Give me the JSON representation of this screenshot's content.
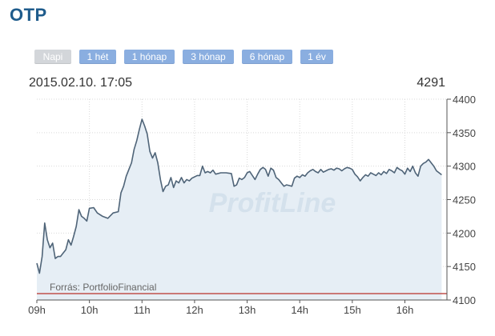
{
  "title": "OTP",
  "ranges": [
    {
      "label": "Napi",
      "active": true
    },
    {
      "label": "1 hét",
      "active": false
    },
    {
      "label": "1 hónap",
      "active": false
    },
    {
      "label": "3 hónap",
      "active": false
    },
    {
      "label": "6 hónap",
      "active": false
    },
    {
      "label": "1 év",
      "active": false
    }
  ],
  "chart_header": {
    "datetime": "2015.02.10. 17:05",
    "last_price": "4291"
  },
  "watermark": "ProfitLine",
  "source_note": "Forrás: PortfolioFinancial",
  "colors": {
    "title": "#1f5c8c",
    "button": "#8aaee0",
    "button_active": "#d3d6da",
    "line": "#4f6478",
    "area": "#e6eef5",
    "baseline": "#c0504d"
  },
  "chart_data": {
    "type": "area",
    "title": "",
    "xlabel": "",
    "ylabel": "",
    "x_ticks": [
      "09h",
      "10h",
      "11h",
      "12h",
      "13h",
      "14h",
      "15h",
      "16h"
    ],
    "y_ticks": [
      4100,
      4150,
      4200,
      4250,
      4300,
      4350,
      4400
    ],
    "xlim": [
      9.0,
      16.8
    ],
    "ylim": [
      4100,
      4400
    ],
    "reference_line": 4110,
    "grid": true,
    "series": [
      {
        "points": [
          [
            9.0,
            4155
          ],
          [
            9.05,
            4140
          ],
          [
            9.1,
            4165
          ],
          [
            9.15,
            4215
          ],
          [
            9.2,
            4190
          ],
          [
            9.25,
            4178
          ],
          [
            9.3,
            4185
          ],
          [
            9.35,
            4162
          ],
          [
            9.4,
            4165
          ],
          [
            9.45,
            4165
          ],
          [
            9.5,
            4170
          ],
          [
            9.55,
            4175
          ],
          [
            9.6,
            4190
          ],
          [
            9.65,
            4182
          ],
          [
            9.7,
            4195
          ],
          [
            9.75,
            4210
          ],
          [
            9.8,
            4235
          ],
          [
            9.85,
            4225
          ],
          [
            9.9,
            4222
          ],
          [
            9.95,
            4218
          ],
          [
            10.0,
            4237
          ],
          [
            10.08,
            4238
          ],
          [
            10.15,
            4230
          ],
          [
            10.25,
            4225
          ],
          [
            10.35,
            4222
          ],
          [
            10.45,
            4230
          ],
          [
            10.55,
            4232
          ],
          [
            10.6,
            4260
          ],
          [
            10.65,
            4270
          ],
          [
            10.7,
            4285
          ],
          [
            10.75,
            4295
          ],
          [
            10.8,
            4305
          ],
          [
            10.85,
            4325
          ],
          [
            10.9,
            4338
          ],
          [
            10.95,
            4355
          ],
          [
            11.0,
            4370
          ],
          [
            11.05,
            4360
          ],
          [
            11.1,
            4348
          ],
          [
            11.15,
            4322
          ],
          [
            11.2,
            4312
          ],
          [
            11.25,
            4320
          ],
          [
            11.3,
            4305
          ],
          [
            11.35,
            4280
          ],
          [
            11.4,
            4262
          ],
          [
            11.45,
            4270
          ],
          [
            11.5,
            4272
          ],
          [
            11.55,
            4283
          ],
          [
            11.6,
            4268
          ],
          [
            11.65,
            4278
          ],
          [
            11.7,
            4275
          ],
          [
            11.75,
            4283
          ],
          [
            11.8,
            4275
          ],
          [
            11.85,
            4280
          ],
          [
            11.9,
            4278
          ],
          [
            11.95,
            4282
          ],
          [
            12.0,
            4284
          ],
          [
            12.05,
            4286
          ],
          [
            12.1,
            4286
          ],
          [
            12.15,
            4300
          ],
          [
            12.2,
            4290
          ],
          [
            12.25,
            4292
          ],
          [
            12.3,
            4290
          ],
          [
            12.35,
            4294
          ],
          [
            12.4,
            4288
          ],
          [
            12.5,
            4290
          ],
          [
            12.6,
            4290
          ],
          [
            12.7,
            4289
          ],
          [
            12.75,
            4270
          ],
          [
            12.8,
            4272
          ],
          [
            12.85,
            4282
          ],
          [
            12.9,
            4280
          ],
          [
            12.95,
            4283
          ],
          [
            13.0,
            4290
          ],
          [
            13.05,
            4292
          ],
          [
            13.1,
            4286
          ],
          [
            13.15,
            4280
          ],
          [
            13.2,
            4288
          ],
          [
            13.25,
            4295
          ],
          [
            13.3,
            4298
          ],
          [
            13.35,
            4295
          ],
          [
            13.4,
            4285
          ],
          [
            13.45,
            4297
          ],
          [
            13.5,
            4294
          ],
          [
            13.55,
            4283
          ],
          [
            13.6,
            4280
          ],
          [
            13.65,
            4275
          ],
          [
            13.7,
            4270
          ],
          [
            13.75,
            4272
          ],
          [
            13.8,
            4271
          ],
          [
            13.85,
            4270
          ],
          [
            13.9,
            4282
          ],
          [
            13.95,
            4285
          ],
          [
            14.0,
            4283
          ],
          [
            14.05,
            4287
          ],
          [
            14.1,
            4285
          ],
          [
            14.15,
            4290
          ],
          [
            14.2,
            4293
          ],
          [
            14.25,
            4295
          ],
          [
            14.3,
            4292
          ],
          [
            14.35,
            4290
          ],
          [
            14.4,
            4295
          ],
          [
            14.45,
            4291
          ],
          [
            14.5,
            4293
          ],
          [
            14.55,
            4295
          ],
          [
            14.6,
            4296
          ],
          [
            14.65,
            4294
          ],
          [
            14.7,
            4297
          ],
          [
            14.75,
            4296
          ],
          [
            14.8,
            4293
          ],
          [
            14.85,
            4296
          ],
          [
            14.9,
            4298
          ],
          [
            14.95,
            4297
          ],
          [
            15.0,
            4295
          ],
          [
            15.05,
            4288
          ],
          [
            15.1,
            4284
          ],
          [
            15.15,
            4278
          ],
          [
            15.2,
            4283
          ],
          [
            15.25,
            4287
          ],
          [
            15.3,
            4285
          ],
          [
            15.35,
            4290
          ],
          [
            15.4,
            4288
          ],
          [
            15.45,
            4286
          ],
          [
            15.5,
            4290
          ],
          [
            15.55,
            4287
          ],
          [
            15.6,
            4292
          ],
          [
            15.65,
            4289
          ],
          [
            15.7,
            4295
          ],
          [
            15.75,
            4293
          ],
          [
            15.8,
            4290
          ],
          [
            15.85,
            4298
          ],
          [
            15.9,
            4295
          ],
          [
            15.95,
            4293
          ],
          [
            16.0,
            4288
          ],
          [
            16.05,
            4297
          ],
          [
            16.1,
            4292
          ],
          [
            16.15,
            4300
          ],
          [
            16.2,
            4290
          ],
          [
            16.25,
            4285
          ],
          [
            16.3,
            4300
          ],
          [
            16.35,
            4304
          ],
          [
            16.4,
            4306
          ],
          [
            16.45,
            4310
          ],
          [
            16.5,
            4305
          ],
          [
            16.55,
            4300
          ],
          [
            16.6,
            4293
          ],
          [
            16.65,
            4290
          ],
          [
            16.7,
            4287
          ]
        ]
      }
    ]
  }
}
